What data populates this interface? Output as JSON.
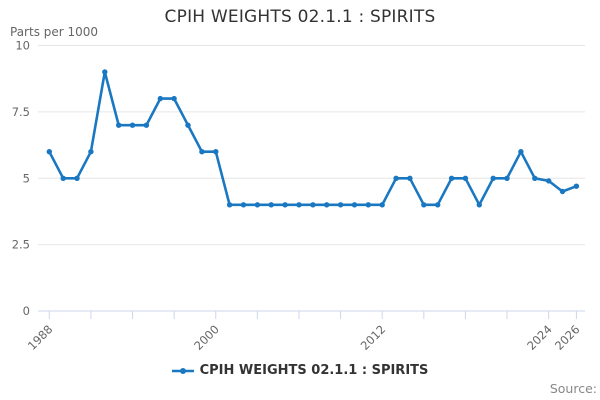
{
  "title": "CPIH WEIGHTS 02.1.1 : SPIRITS",
  "y_axis_unit_label": "Parts per 1000",
  "source_label": "Source:",
  "legend": {
    "label": "CPIH WEIGHTS 02.1.1 : SPIRITS"
  },
  "colors": {
    "line": "#1a78c2",
    "grid": "#e6e6e6",
    "axis": "#ccd6eb",
    "tick_text": "#666666",
    "title_text": "#333333",
    "legend_text": "#333333",
    "source_text": "#888888"
  },
  "chart_data": {
    "type": "line",
    "title": "CPIH WEIGHTS 02.1.1 : SPIRITS",
    "ylabel": "Parts per 1000",
    "xlabel": "",
    "ylim": [
      0,
      10
    ],
    "yticks": [
      0,
      2.5,
      5,
      7.5,
      10
    ],
    "ytick_labels": [
      "0",
      "2.5",
      "5",
      "7.5",
      "10"
    ],
    "x_range": [
      1988,
      2026
    ],
    "xticks_all": [
      1988,
      1991,
      1994,
      1997,
      2000,
      2003,
      2006,
      2009,
      2012,
      2015,
      2018,
      2021,
      2024,
      2026
    ],
    "xticks_labeled": [
      "1988",
      "2000",
      "2012",
      "2024",
      "2026"
    ],
    "grid": "horizontal",
    "legend_position": "bottom",
    "markers": true,
    "x": [
      1988,
      1989,
      1990,
      1991,
      1992,
      1993,
      1994,
      1995,
      1996,
      1997,
      1998,
      1999,
      2000,
      2001,
      2002,
      2003,
      2004,
      2005,
      2006,
      2007,
      2008,
      2009,
      2010,
      2011,
      2012,
      2013,
      2014,
      2015,
      2016,
      2017,
      2018,
      2019,
      2020,
      2021,
      2022,
      2023,
      2024,
      2025,
      2026
    ],
    "series": [
      {
        "name": "CPIH WEIGHTS 02.1.1 : SPIRITS",
        "values": [
          6,
          5,
          5,
          6,
          9,
          7,
          7,
          7,
          8,
          8,
          7,
          6,
          6,
          4,
          4,
          4,
          4,
          4,
          4,
          4,
          4,
          4,
          4,
          4,
          4,
          5,
          5,
          4,
          4,
          5,
          5,
          4,
          5,
          5,
          6,
          5,
          4.9,
          4.5,
          4.7
        ]
      }
    ]
  }
}
